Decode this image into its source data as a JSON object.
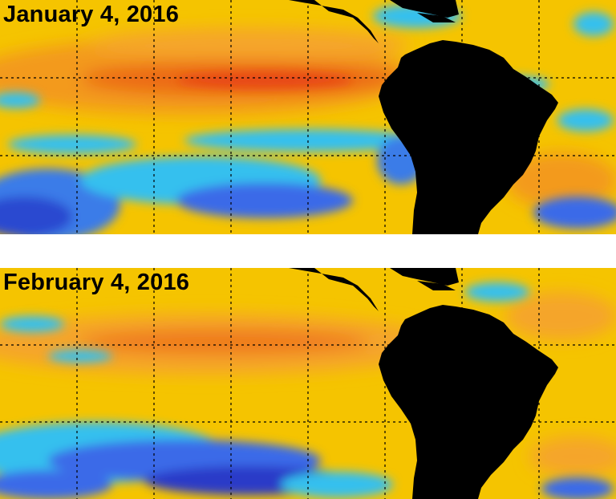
{
  "panels": [
    {
      "id": "jan",
      "date_label": "January 4, 2016"
    },
    {
      "id": "feb",
      "date_label": "February 4, 2016"
    }
  ],
  "colors": {
    "background": "#f5c400",
    "warm_band": "#f39a1a",
    "hot_core": "#ea4a16",
    "warm_patch": "#f7a728",
    "cool": "#35c0ee",
    "cold": "#3a5ee8",
    "very_cold": "#2a3ac8",
    "land": "#000000",
    "grid": "#000000"
  }
}
